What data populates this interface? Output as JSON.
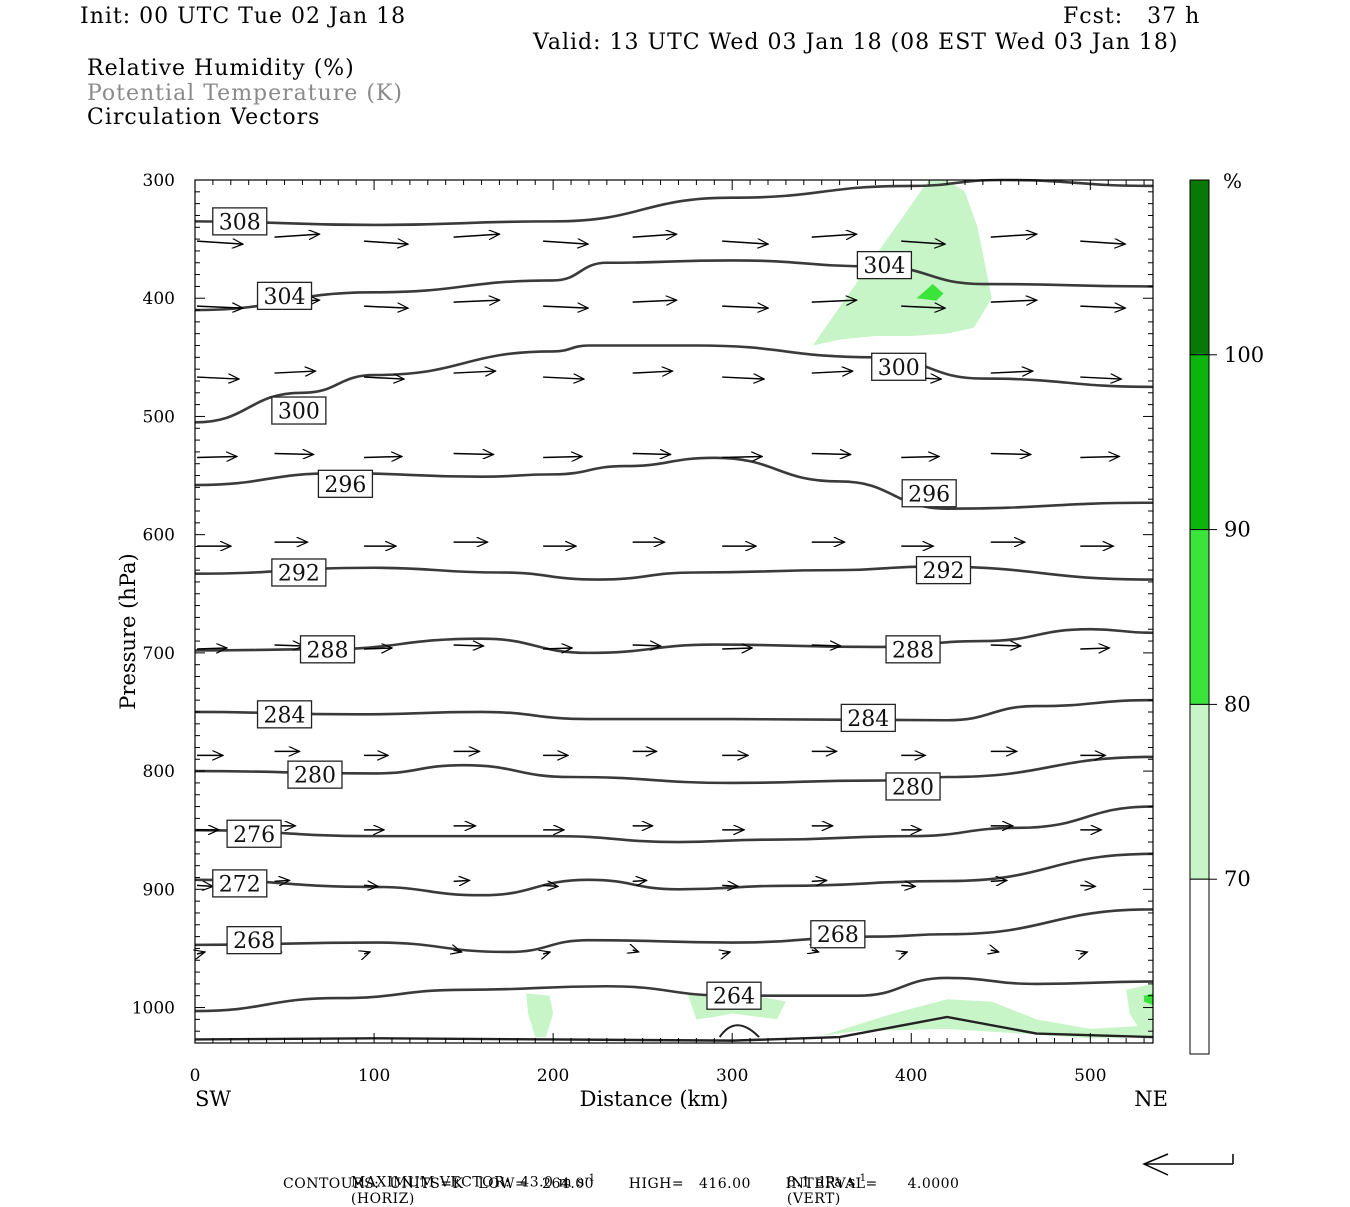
{
  "header": {
    "init": "Init: 00 UTC Tue 02 Jan 18",
    "fcst": "Fcst:   37 h",
    "valid": "Valid: 13 UTC Wed 03 Jan 18 (08 EST Wed 03 Jan 18)"
  },
  "legend": {
    "line1": "Relative Humidity (%)",
    "line2": "Potential Temperature (K)",
    "line3": "Circulation Vectors"
  },
  "colors": {
    "rh70": "#c8f5c8",
    "rh80": "#3be43b",
    "rh90": "#0cb40c",
    "rh100": "#087808",
    "contour": "#3a3a3a",
    "label_gray": "#8a8a8a"
  },
  "chart_data": {
    "type": "cross-section",
    "title": "Relative Humidity (%), Potential Temperature (K), Circulation Vectors",
    "xlabel": "Distance (km)",
    "ylabel": "Pressure (hPa)",
    "xlim": [
      0,
      535
    ],
    "ylim": [
      1030,
      300
    ],
    "x_ticks": [
      0,
      100,
      200,
      300,
      400,
      500
    ],
    "y_ticks": [
      300,
      400,
      500,
      600,
      700,
      800,
      900,
      1000
    ],
    "x_endpoints": {
      "left": "SW",
      "right": "NE"
    },
    "colorbar": {
      "unit": "%",
      "levels": [
        70,
        80,
        90,
        100
      ]
    },
    "theta_contours": [
      {
        "label": "308",
        "level": 308,
        "x": [
          0,
          100,
          200,
          300,
          400,
          450,
          535
        ],
        "p": [
          335,
          338,
          335,
          315,
          305,
          300,
          305
        ],
        "label_at": [
          25,
          335
        ]
      },
      {
        "label": "304",
        "level": 304,
        "x": [
          0,
          100,
          200,
          230,
          300,
          380,
          440,
          535
        ],
        "p": [
          410,
          395,
          385,
          370,
          368,
          373,
          388,
          390
        ],
        "label_at": [
          50,
          398
        ]
      },
      {
        "label": "304",
        "level": 304,
        "x": [],
        "p": [],
        "label_at": [
          385,
          372
        ]
      },
      {
        "label": "300",
        "level": 300,
        "x": [
          0,
          60,
          100,
          200,
          220,
          280,
          380,
          440,
          535
        ],
        "p": [
          505,
          480,
          465,
          445,
          440,
          440,
          450,
          468,
          475
        ],
        "label_at": [
          58,
          495
        ]
      },
      {
        "label": "300",
        "level": 300,
        "x": [],
        "p": [],
        "label_at": [
          393,
          458
        ]
      },
      {
        "label": "296",
        "level": 296,
        "x": [
          0,
          80,
          160,
          200,
          240,
          290,
          360,
          420,
          535
        ],
        "p": [
          558,
          548,
          551,
          549,
          542,
          535,
          555,
          578,
          573
        ],
        "label_at": [
          84,
          557
        ]
      },
      {
        "label": "296",
        "level": 296,
        "x": [],
        "p": [],
        "label_at": [
          410,
          565
        ]
      },
      {
        "label": "292",
        "level": 292,
        "x": [
          0,
          100,
          170,
          225,
          280,
          360,
          410,
          535
        ],
        "p": [
          633,
          628,
          632,
          638,
          632,
          630,
          627,
          638
        ],
        "label_at": [
          58,
          632
        ]
      },
      {
        "label": "292",
        "level": 292,
        "x": [],
        "p": [],
        "label_at": [
          418,
          630
        ]
      },
      {
        "label": "288",
        "level": 288,
        "x": [
          0,
          70,
          160,
          220,
          290,
          380,
          440,
          500,
          535
        ],
        "p": [
          698,
          697,
          688,
          700,
          693,
          695,
          690,
          680,
          683
        ],
        "label_at": [
          74,
          697
        ]
      },
      {
        "label": "288",
        "level": 288,
        "x": [],
        "p": [],
        "label_at": [
          401,
          697
        ]
      },
      {
        "label": "284",
        "level": 284,
        "x": [
          0,
          90,
          160,
          220,
          300,
          420,
          470,
          535
        ],
        "p": [
          750,
          752,
          750,
          756,
          756,
          757,
          745,
          740
        ],
        "label_at": [
          50,
          752
        ]
      },
      {
        "label": "284",
        "level": 284,
        "x": [],
        "p": [],
        "label_at": [
          376,
          755
        ]
      },
      {
        "label": "280",
        "level": 280,
        "x": [
          0,
          100,
          150,
          210,
          300,
          380,
          420,
          535
        ],
        "p": [
          800,
          802,
          795,
          805,
          810,
          808,
          805,
          788
        ],
        "label_at": [
          67,
          803
        ]
      },
      {
        "label": "280",
        "level": 280,
        "x": [],
        "p": [],
        "label_at": [
          401,
          813
        ]
      },
      {
        "label": "276",
        "level": 276,
        "x": [
          0,
          100,
          200,
          270,
          320,
          400,
          460,
          535
        ],
        "p": [
          850,
          855,
          855,
          860,
          858,
          855,
          848,
          830
        ],
        "label_at": [
          33,
          853
        ]
      },
      {
        "label": "272",
        "level": 272,
        "x": [
          0,
          100,
          160,
          220,
          270,
          330,
          420,
          535
        ],
        "p": [
          892,
          898,
          905,
          892,
          900,
          897,
          893,
          870
        ],
        "label_at": [
          25,
          895
        ]
      },
      {
        "label": "268",
        "level": 268,
        "x": [
          0,
          100,
          175,
          220,
          300,
          380,
          420,
          535
        ],
        "p": [
          947,
          945,
          953,
          943,
          945,
          940,
          938,
          917
        ],
        "label_at": [
          33,
          943
        ]
      },
      {
        "label": "268",
        "level": 268,
        "x": [],
        "p": [],
        "label_at": [
          359,
          938
        ]
      },
      {
        "label": "264",
        "level": 264,
        "x": [
          0,
          80,
          150,
          230,
          300,
          370,
          420,
          470,
          535
        ],
        "p": [
          1003,
          992,
          985,
          982,
          990,
          990,
          975,
          980,
          978
        ],
        "label_at": [
          301,
          990
        ]
      }
    ],
    "rh_areas": [
      {
        "level": 70,
        "x": [
          405,
          410,
          420,
          430,
          437,
          445,
          435,
          420,
          400,
          380,
          360,
          345
        ],
        "p": [
          310,
          300,
          300,
          310,
          340,
          400,
          425,
          430,
          432,
          432,
          435,
          440
        ]
      },
      {
        "level": 80,
        "x": [
          403,
          412,
          418,
          414
        ],
        "p": [
          400,
          388,
          396,
          402
        ]
      },
      {
        "level": 70,
        "x": [
          185,
          198,
          200,
          196,
          190,
          186
        ],
        "p": [
          988,
          990,
          1005,
          1025,
          1025,
          1005
        ]
      },
      {
        "level": 70,
        "x": [
          275,
          300,
          320,
          330,
          325,
          300,
          290,
          280
        ],
        "p": [
          988,
          990,
          992,
          995,
          1010,
          1005,
          1008,
          1010
        ]
      },
      {
        "level": 70,
        "x": [
          390,
          420,
          445,
          470,
          500,
          535,
          535,
          500,
          460,
          420,
          370,
          350
        ],
        "p": [
          1005,
          993,
          995,
          1010,
          1018,
          1015,
          1025,
          1026,
          1022,
          1018,
          1020,
          1024
        ]
      },
      {
        "level": 70,
        "x": [
          520,
          535,
          535,
          530,
          522
        ],
        "p": [
          985,
          980,
          1022,
          1025,
          1005
        ]
      },
      {
        "level": 80,
        "x": [
          530,
          535,
          535,
          530
        ],
        "p": [
          990,
          988,
          998,
          995
        ]
      }
    ],
    "vectors": {
      "levels_hpa": [
        350,
        405,
        465,
        533,
        608,
        695,
        785,
        848,
        895,
        953
      ],
      "x_positions": [
        0,
        50,
        100,
        150,
        200,
        250,
        300,
        350,
        400,
        450,
        500
      ],
      "note": "Arrows point mostly eastward (SW->NE), shortening toward the surface."
    },
    "footer": {
      "max_vector": "MAXIMUM VECTOR:  43.0 m s",
      "max_vector_horiz": "(HORIZ)",
      "max_vector_vert_val": "8.1 dPa s",
      "max_vector_vert": "(VERT)",
      "contours_line": "CONTOURS:  UNITS=K   LOW=   264.00       HIGH=   416.00       INTERVAL=      4.0000",
      "superscript": "-1"
    }
  }
}
